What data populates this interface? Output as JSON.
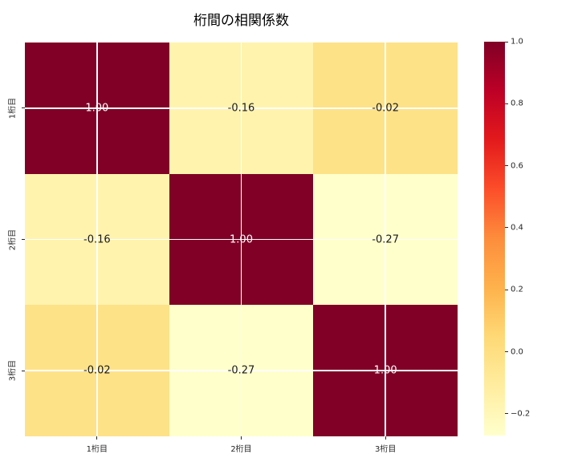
{
  "title": "桁間の相関係数",
  "chart_data": {
    "type": "heatmap",
    "title": "桁間の相関係数",
    "x_categories": [
      "1桁目",
      "2桁目",
      "3桁目"
    ],
    "y_categories": [
      "1桁目",
      "2桁目",
      "3桁目"
    ],
    "matrix": [
      [
        1.0,
        -0.16,
        -0.02
      ],
      [
        -0.16,
        1.0,
        -0.27
      ],
      [
        -0.02,
        -0.27,
        1.0
      ]
    ],
    "cell_labels": [
      [
        "1.00",
        "-0.16",
        "-0.02"
      ],
      [
        "-0.16",
        "1.00",
        "-0.27"
      ],
      [
        "-0.02",
        "-0.27",
        "1.00"
      ]
    ],
    "colormap": "YlOrRd",
    "colormap_stops": [
      "#ffffcc",
      "#ffeda0",
      "#fed976",
      "#feb24c",
      "#fd8d3c",
      "#fc4e2a",
      "#e31a1c",
      "#bd0026",
      "#800026"
    ],
    "vmin": -0.27,
    "vmax": 1.0,
    "grid": true,
    "legend_position": "right-colorbar",
    "colorbar_ticks": [
      {
        "value": 1.0,
        "label": "1.0"
      },
      {
        "value": 0.8,
        "label": "0.8"
      },
      {
        "value": 0.6,
        "label": "0.6"
      },
      {
        "value": 0.4,
        "label": "0.4"
      },
      {
        "value": 0.2,
        "label": "0.2"
      },
      {
        "value": 0.0,
        "label": "0.0"
      },
      {
        "value": -0.2,
        "label": "−0.2"
      }
    ],
    "annotation_colors": {
      "light": "#ffffff",
      "dark": "#1a1a1a"
    },
    "tick_color": "#262626"
  }
}
